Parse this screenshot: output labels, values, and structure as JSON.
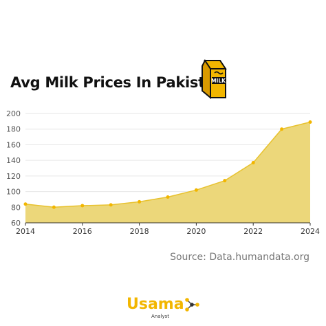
{
  "header": {
    "title": "Avg Milk Prices In Pakistan",
    "icon_text": "MILK",
    "icon": "milk-carton-icon"
  },
  "source": "Source: Data.humandata.org",
  "branding": {
    "name": "Usama",
    "subtitle": "Analyst",
    "icon": "network-dots-icon",
    "accent": "#f2b600"
  },
  "colors": {
    "area_fill": "#ecd77a",
    "line": "#e8c22e",
    "point": "#f2b600"
  },
  "chart_data": {
    "type": "area",
    "title": "Avg Milk Prices In Pakistan",
    "xlabel": "",
    "ylabel": "",
    "x": [
      2014,
      2015,
      2016,
      2017,
      2018,
      2019,
      2020,
      2021,
      2022,
      2023,
      2024
    ],
    "values": [
      84,
      80,
      82,
      83,
      87,
      93,
      102,
      114,
      137,
      180,
      189
    ],
    "xlim": [
      2014,
      2024
    ],
    "ylim": [
      60,
      200
    ],
    "xticks": [
      "2014",
      "2016",
      "2018",
      "2020",
      "2022",
      "2024"
    ],
    "yticks": [
      "60",
      "80",
      "100",
      "120",
      "140",
      "160",
      "180",
      "200"
    ],
    "grid": true,
    "legend": "none"
  }
}
